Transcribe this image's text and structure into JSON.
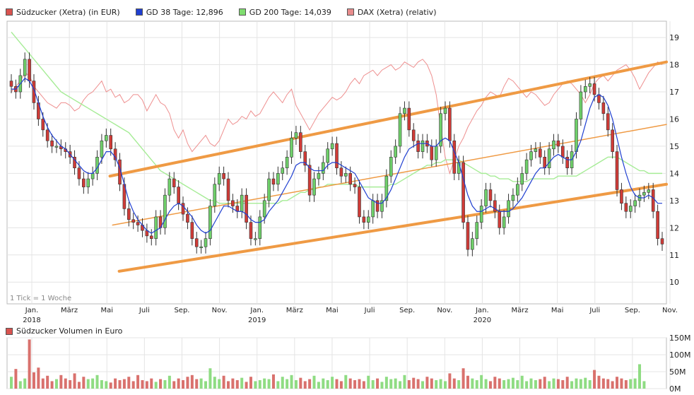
{
  "legend": [
    {
      "label": "Südzucker (Xetra) (in EUR)",
      "color": "#d9534f"
    },
    {
      "label": "GD 38 Tage: 12,896",
      "color": "#1f3fd1"
    },
    {
      "label": "GD 200 Tage: 14,039",
      "color": "#7fdc6f"
    },
    {
      "label": "DAX (Xetra) (relativ)",
      "color": "#e88c8c"
    }
  ],
  "tick_note": "1 Tick = 1 Woche",
  "volume_title": "Südzucker Volumen in Euro",
  "chart_data": [
    {
      "type": "line",
      "y_ticks": [
        "10",
        "11",
        "12",
        "13",
        "14",
        "15",
        "16",
        "17",
        "18",
        "19"
      ],
      "ylim": [
        9.2,
        19.6
      ],
      "x_ticks": [
        {
          "month": "Jan.",
          "year": "2018"
        },
        {
          "month": "März",
          "year": ""
        },
        {
          "month": "Mai",
          "year": ""
        },
        {
          "month": "Juli",
          "year": ""
        },
        {
          "month": "Sep.",
          "year": ""
        },
        {
          "month": "Nov.",
          "year": ""
        },
        {
          "month": "Jan.",
          "year": "2019"
        },
        {
          "month": "März",
          "year": ""
        },
        {
          "month": "Mai",
          "year": ""
        },
        {
          "month": "Juli",
          "year": ""
        },
        {
          "month": "Sep.",
          "year": ""
        },
        {
          "month": "Nov.",
          "year": ""
        },
        {
          "month": "Jan.",
          "year": "2020"
        },
        {
          "month": "März",
          "year": ""
        },
        {
          "month": "Mai",
          "year": ""
        },
        {
          "month": "Juli",
          "year": ""
        },
        {
          "month": "Sep.",
          "year": ""
        },
        {
          "month": "Nov.",
          "year": ""
        }
      ],
      "close": [
        17.2,
        17.0,
        17.6,
        18.2,
        17.4,
        16.6,
        16.0,
        15.6,
        15.2,
        15.0,
        15.0,
        14.9,
        14.8,
        14.6,
        14.2,
        13.8,
        13.5,
        13.8,
        14.0,
        14.6,
        15.2,
        15.4,
        14.9,
        14.5,
        13.6,
        12.7,
        12.3,
        12.2,
        12.1,
        11.9,
        11.7,
        11.6,
        12.4,
        12.0,
        13.2,
        13.8,
        13.5,
        12.9,
        12.5,
        12.2,
        11.6,
        11.3,
        11.3,
        11.6,
        12.8,
        13.6,
        14.0,
        13.8,
        13.0,
        12.8,
        12.6,
        13.2,
        12.2,
        11.6,
        11.6,
        12.4,
        13.0,
        13.8,
        13.6,
        14.0,
        14.2,
        14.6,
        15.3,
        15.5,
        14.8,
        14.3,
        13.2,
        13.8,
        14.0,
        14.4,
        14.9,
        15.1,
        14.2,
        13.9,
        14.0,
        13.6,
        13.5,
        12.4,
        12.2,
        12.4,
        13.0,
        12.6,
        13.0,
        13.9,
        14.6,
        15.0,
        16.2,
        16.4,
        15.6,
        15.2,
        14.8,
        15.2,
        15.0,
        14.5,
        15.0,
        16.2,
        16.4,
        15.2,
        14.0,
        14.4,
        12.2,
        11.2,
        11.6,
        12.2,
        12.8,
        13.4,
        13.0,
        12.6,
        12.0,
        12.4,
        13.0,
        13.2,
        13.6,
        14.0,
        14.5,
        14.8,
        14.9,
        14.6,
        14.2,
        14.9,
        15.2,
        15.0,
        14.6,
        14.2,
        14.8,
        16.0,
        17.0,
        17.2,
        17.3,
        16.9,
        16.6,
        16.2,
        15.6,
        14.8,
        13.4,
        12.9,
        12.6,
        12.8,
        13.0,
        13.2,
        13.3,
        13.4,
        12.6,
        11.6,
        11.4
      ],
      "gd38": [
        17.1,
        17.1,
        17.3,
        17.5,
        17.4,
        17.1,
        16.6,
        16.1,
        15.7,
        15.4,
        15.2,
        15.0,
        14.9,
        14.7,
        14.5,
        14.3,
        14.1,
        14.0,
        14.0,
        14.2,
        14.5,
        14.8,
        14.8,
        14.6,
        14.2,
        13.6,
        13.0,
        12.6,
        12.3,
        12.1,
        11.9,
        11.8,
        11.9,
        12.0,
        12.3,
        12.6,
        12.8,
        12.9,
        12.8,
        12.6,
        12.4,
        12.1,
        11.9,
        11.8,
        11.9,
        12.2,
        12.5,
        12.8,
        12.8,
        12.7,
        12.6,
        12.6,
        12.5,
        12.3,
        12.2,
        12.2,
        12.3,
        12.6,
        12.8,
        13.0,
        13.3,
        13.6,
        13.9,
        14.3,
        14.4,
        14.4,
        14.2,
        14.1,
        14.1,
        14.1,
        14.3,
        14.4,
        14.4,
        14.3,
        14.2,
        14.1,
        14.0,
        13.7,
        13.4,
        13.1,
        13.0,
        12.9,
        12.9,
        13.1,
        13.4,
        13.8,
        14.2,
        14.6,
        14.9,
        15.0,
        15.1,
        15.1,
        15.1,
        15.0,
        15.0,
        15.2,
        15.3,
        15.2,
        14.8,
        14.4,
        13.8,
        13.2,
        12.8,
        12.6,
        12.6,
        12.7,
        12.8,
        12.7,
        12.6,
        12.6,
        12.6,
        12.7,
        12.9,
        13.1,
        13.4,
        13.7,
        14.0,
        14.2,
        14.2,
        14.4,
        14.6,
        14.7,
        14.6,
        14.5,
        14.5,
        14.8,
        15.2,
        15.8,
        16.4,
        16.8,
        16.9,
        16.8,
        16.5,
        16.0,
        15.3,
        14.6,
        14.0,
        13.5,
        13.2,
        13.1,
        13.1,
        13.2,
        13.1,
        12.9,
        12.9
      ],
      "gd200": [
        19.2,
        19.0,
        18.8,
        18.6,
        18.4,
        18.2,
        18.0,
        17.8,
        17.6,
        17.4,
        17.2,
        17.0,
        16.9,
        16.8,
        16.7,
        16.6,
        16.5,
        16.4,
        16.3,
        16.2,
        16.1,
        16.0,
        15.9,
        15.8,
        15.7,
        15.6,
        15.5,
        15.3,
        15.1,
        14.9,
        14.7,
        14.5,
        14.3,
        14.1,
        14.0,
        13.9,
        13.8,
        13.7,
        13.6,
        13.5,
        13.4,
        13.3,
        13.2,
        13.1,
        13.0,
        13.0,
        12.9,
        12.9,
        12.9,
        12.9,
        12.9,
        12.9,
        12.9,
        12.9,
        12.9,
        12.9,
        12.9,
        12.9,
        12.9,
        12.9,
        13.0,
        13.0,
        13.1,
        13.2,
        13.3,
        13.3,
        13.4,
        13.4,
        13.5,
        13.5,
        13.6,
        13.6,
        13.6,
        13.6,
        13.6,
        13.6,
        13.6,
        13.5,
        13.5,
        13.5,
        13.5,
        13.5,
        13.5,
        13.5,
        13.6,
        13.6,
        13.7,
        13.8,
        13.9,
        14.0,
        14.1,
        14.2,
        14.3,
        14.3,
        14.4,
        14.4,
        14.5,
        14.5,
        14.5,
        14.5,
        14.4,
        14.3,
        14.2,
        14.1,
        14.0,
        14.0,
        13.9,
        13.9,
        13.8,
        13.8,
        13.8,
        13.7,
        13.7,
        13.7,
        13.7,
        13.8,
        13.8,
        13.8,
        13.8,
        13.8,
        13.8,
        13.9,
        13.9,
        13.9,
        13.9,
        13.9,
        14.0,
        14.1,
        14.2,
        14.3,
        14.4,
        14.5,
        14.6,
        14.6,
        14.6,
        14.5,
        14.4,
        14.3,
        14.2,
        14.1,
        14.1,
        14.0,
        14.0,
        14.0,
        14.0
      ],
      "dax": [
        17.0,
        17.2,
        17.4,
        17.7,
        17.6,
        17.2,
        17.0,
        16.8,
        16.6,
        16.5,
        16.4,
        16.6,
        16.6,
        16.5,
        16.3,
        16.4,
        16.7,
        16.9,
        17.0,
        17.2,
        17.4,
        17.0,
        17.1,
        16.8,
        16.9,
        16.6,
        16.7,
        16.9,
        16.9,
        16.7,
        16.3,
        16.6,
        16.9,
        16.6,
        16.5,
        16.2,
        15.6,
        15.3,
        15.6,
        15.1,
        14.8,
        15.0,
        15.2,
        15.4,
        15.1,
        15.0,
        15.2,
        15.6,
        16.0,
        15.8,
        15.9,
        16.1,
        16.0,
        16.3,
        16.1,
        16.2,
        16.5,
        16.8,
        17.0,
        16.8,
        16.6,
        16.9,
        17.1,
        16.5,
        16.2,
        15.9,
        15.6,
        15.9,
        16.2,
        16.4,
        16.6,
        16.8,
        16.7,
        16.8,
        17.0,
        17.3,
        17.5,
        17.3,
        17.6,
        17.7,
        17.8,
        17.6,
        17.8,
        17.9,
        18.0,
        17.8,
        17.9,
        18.1,
        18.0,
        17.9,
        18.1,
        18.2,
        18.0,
        17.6,
        16.9,
        15.7,
        14.6,
        14.0,
        14.5,
        15.0,
        15.3,
        15.7,
        16.0,
        16.3,
        16.5,
        16.8,
        17.0,
        16.9,
        16.8,
        17.2,
        17.5,
        17.4,
        17.2,
        17.0,
        16.8,
        17.0,
        16.9,
        16.7,
        16.5,
        16.6,
        16.9,
        17.1,
        17.3,
        17.4,
        17.3,
        17.1,
        16.9,
        16.6,
        16.9,
        17.3,
        17.5,
        17.6,
        17.4,
        17.6,
        17.8,
        17.9,
        18.0,
        17.8,
        17.5,
        17.1,
        17.4,
        17.7,
        17.9,
        18.1,
        18.0
      ],
      "trend_lines": [
        {
          "name": "Oberer Trendkanal",
          "from": [
            0.156,
            13.9
          ],
          "to": [
            1.0,
            18.1
          ]
        },
        {
          "name": "Mittellinie",
          "from": [
            0.16,
            12.1
          ],
          "to": [
            1.0,
            15.8
          ]
        },
        {
          "name": "Unterer Trendkanal",
          "from": [
            0.17,
            10.4
          ],
          "to": [
            1.0,
            13.6
          ]
        }
      ]
    },
    {
      "type": "bar",
      "title": "Südzucker Volumen in Euro",
      "y_ticks": [
        "0M",
        "50M",
        "100M",
        "150M"
      ],
      "ylim": [
        0,
        150
      ],
      "volume": [
        35,
        58,
        22,
        30,
        145,
        48,
        62,
        30,
        38,
        22,
        28,
        40,
        30,
        25,
        45,
        20,
        35,
        28,
        30,
        40,
        25,
        22,
        18,
        30,
        25,
        28,
        35,
        22,
        40,
        25,
        22,
        30,
        20,
        28,
        25,
        38,
        22,
        30,
        25,
        35,
        40,
        28,
        30,
        22,
        60,
        35,
        28,
        38,
        22,
        30,
        25,
        32,
        20,
        35,
        22,
        25,
        30,
        28,
        42,
        22,
        35,
        28,
        40,
        25,
        32,
        22,
        28,
        38,
        20,
        30,
        25,
        35,
        28,
        22,
        40,
        30,
        25,
        28,
        22,
        38,
        25,
        30,
        20,
        35,
        28,
        30,
        22,
        40,
        25,
        32,
        28,
        22,
        35,
        30,
        25,
        28,
        22,
        45,
        30,
        25,
        60,
        38,
        30,
        25,
        40,
        28,
        22,
        35,
        30,
        25,
        28,
        32,
        25,
        38,
        22,
        30,
        25,
        28,
        35,
        22,
        30,
        28,
        25,
        35,
        22,
        30,
        28,
        32,
        25,
        55,
        38,
        30,
        28,
        22,
        35,
        30,
        25,
        28,
        30,
        72,
        22
      ]
    }
  ],
  "colors": {
    "up": "#6fd06a",
    "down": "#d03b37",
    "gd38": "#1f3fd1",
    "gd200": "#a6ec96",
    "dax": "#ee8f8f",
    "trend": "#ef9a44"
  }
}
